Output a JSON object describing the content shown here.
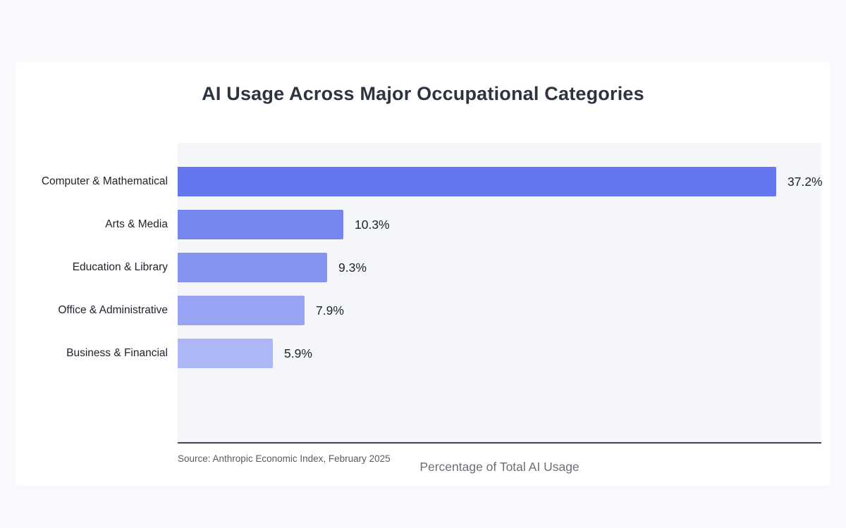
{
  "chart_data": {
    "type": "bar",
    "orientation": "horizontal",
    "title": "AI Usage Across Major Occupational Categories",
    "categories": [
      "Computer & Mathematical",
      "Arts & Media",
      "Education & Library",
      "Office & Administrative",
      "Business & Financial"
    ],
    "values": [
      37.2,
      10.3,
      9.3,
      7.9,
      5.9
    ],
    "value_labels": [
      "37.2%",
      "10.3%",
      "9.3%",
      "7.9%",
      "5.9%"
    ],
    "bar_colors": [
      "#6376ee",
      "#7686f0",
      "#8593f1",
      "#98a4f3",
      "#adb7f6"
    ],
    "xlabel": "Percentage of Total AI Usage",
    "xlim": [
      0,
      40
    ],
    "grid": false,
    "legend": false,
    "source": "Source: Anthropic Economic Index, February 2025",
    "plot_background": "#f5f6f9",
    "page_background": "#f7f9fc"
  }
}
